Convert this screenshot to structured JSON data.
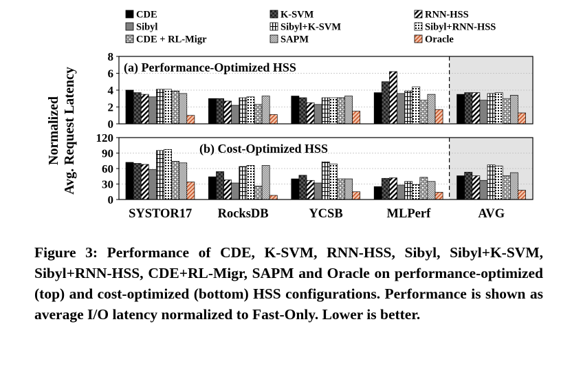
{
  "chart_data": {
    "type": "bar",
    "ylabel": "Normalized\nAvg. Request Latency",
    "categories": [
      "SYSTOR17",
      "RocksDB",
      "YCSB",
      "MLPerf",
      "AVG"
    ],
    "legend": [
      {
        "name": "CDE",
        "pattern": "solid-black"
      },
      {
        "name": "K-SVM",
        "pattern": "dark-check"
      },
      {
        "name": "RNN-HSS",
        "pattern": "diag-bold"
      },
      {
        "name": "Sibyl",
        "pattern": "solid-gray"
      },
      {
        "name": "Sibyl+K-SVM",
        "pattern": "vbars"
      },
      {
        "name": "Sibyl+RNN-HSS",
        "pattern": "dotgrid"
      },
      {
        "name": "CDE + RL-Migr",
        "pattern": "squares"
      },
      {
        "name": "SAPM",
        "pattern": "fine-check"
      },
      {
        "name": "Oracle",
        "pattern": "salmon-diag"
      }
    ],
    "panels": [
      {
        "title": "(a) Performance-Optimized HSS",
        "ylim": [
          0,
          8
        ],
        "yticks": [
          0,
          2,
          4,
          6,
          8
        ],
        "series": [
          {
            "name": "CDE",
            "values": [
              4.0,
              3.0,
              3.3,
              3.7,
              3.5
            ]
          },
          {
            "name": "K-SVM",
            "values": [
              3.7,
              3.0,
              3.1,
              5.0,
              3.7
            ]
          },
          {
            "name": "RNN-HSS",
            "values": [
              3.5,
              2.7,
              2.5,
              6.2,
              3.7
            ]
          },
          {
            "name": "Sibyl",
            "values": [
              3.2,
              2.2,
              2.3,
              3.6,
              2.8
            ]
          },
          {
            "name": "Sibyl+K-SVM",
            "values": [
              4.1,
              3.1,
              3.1,
              3.9,
              3.6
            ]
          },
          {
            "name": "Sibyl+RNN-HSS",
            "values": [
              4.1,
              3.2,
              3.1,
              4.4,
              3.7
            ]
          },
          {
            "name": "CDE + RL-Migr",
            "values": [
              3.9,
              2.3,
              3.1,
              2.8,
              3.0
            ]
          },
          {
            "name": "SAPM",
            "values": [
              3.6,
              3.3,
              3.3,
              3.5,
              3.4
            ]
          },
          {
            "name": "Oracle",
            "values": [
              1.0,
              1.1,
              1.5,
              1.7,
              1.3
            ]
          }
        ]
      },
      {
        "title": "(b) Cost-Optimized HSS",
        "ylim": [
          0,
          120
        ],
        "yticks": [
          0,
          30,
          60,
          90,
          120
        ],
        "series": [
          {
            "name": "CDE",
            "values": [
              72,
              44,
              40,
              25,
              46
            ]
          },
          {
            "name": "K-SVM",
            "values": [
              70,
              54,
              47,
              41,
              53
            ]
          },
          {
            "name": "RNN-HSS",
            "values": [
              68,
              38,
              37,
              42,
              46
            ]
          },
          {
            "name": "Sibyl",
            "values": [
              58,
              32,
              32,
              28,
              37
            ]
          },
          {
            "name": "Sibyl+K-SVM",
            "values": [
              95,
              64,
              73,
              35,
              67
            ]
          },
          {
            "name": "Sibyl+RNN-HSS",
            "values": [
              97,
              66,
              69,
              29,
              65
            ]
          },
          {
            "name": "CDE + RL-Migr",
            "values": [
              74,
              26,
              40,
              43,
              46
            ]
          },
          {
            "name": "SAPM",
            "values": [
              71,
              66,
              40,
              35,
              52
            ]
          },
          {
            "name": "Oracle",
            "values": [
              34,
              8,
              15,
              14,
              18
            ]
          }
        ]
      }
    ]
  },
  "caption": "Figure 3: Performance of CDE, K-SVM, RNN-HSS, Sibyl, Sibyl+K-SVM, Sibyl+RNN-HSS, CDE+RL-Migr, SAPM and Oracle on performance-optimized (top) and cost-optimized (bottom) HSS configurations. Performance is shown as average I/O latency normalized to Fast-Only. Lower is better."
}
